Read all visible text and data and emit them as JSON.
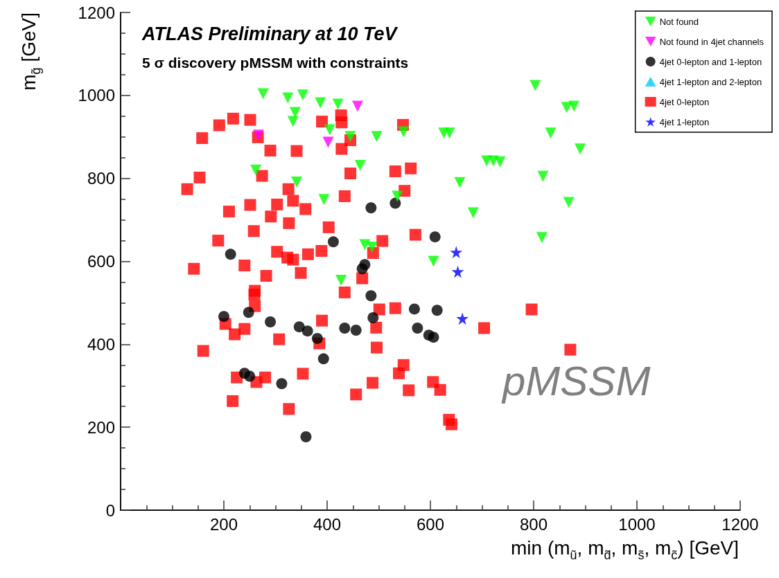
{
  "chart_data": {
    "type": "scatter",
    "title": "ATLAS Preliminary at 10 TeV",
    "subtitle": "5 σ discovery pMSSM with constraints",
    "xlabel": "min (m$_{ũ}$, m$_{d̃}$, m$_{s̃}$, m$_{c̃}$) [GeV]",
    "ylabel": "m$_{g̃}$ [GeV]",
    "annotations": [
      "pMSSM"
    ],
    "xlim": [
      0,
      1200
    ],
    "xticks": [
      200,
      400,
      600,
      800,
      1000,
      1200
    ],
    "ylim": [
      0,
      1200
    ],
    "yticks": [
      0,
      200,
      400,
      600,
      800,
      1000,
      1200
    ],
    "grid": false,
    "legend": "top right",
    "series": [
      {
        "name": "Not found",
        "color": "#00ff00",
        "marker": "triangle-down",
        "x": [
          276,
          324,
          353,
          387,
          421,
          338,
          334,
          405,
          445,
          496,
          548,
          626,
          637,
          464,
          341,
          394,
          536,
          606,
          657,
          683,
          473,
          487,
          427,
          262,
          803,
          864,
          878,
          833,
          890,
          709,
          722,
          735,
          818,
          868,
          816
        ],
        "values": [
          1004,
          994,
          1001,
          982,
          979,
          959,
          937,
          917,
          901,
          901,
          912,
          909,
          909,
          831,
          791,
          749,
          757,
          600,
          790,
          717,
          640,
          634,
          554,
          820,
          1024,
          971,
          974,
          909,
          871,
          842,
          842,
          840,
          805,
          742,
          657
        ]
      },
      {
        "name": "Not found in 4jet channels",
        "color": "#ff00ff",
        "marker": "triangle-down",
        "x": [
          267,
          459,
          402
        ],
        "values": [
          904,
          974,
          887
        ]
      },
      {
        "name": "4jet 0-lepton and 1-lepton",
        "color": "#000000",
        "marker": "circle",
        "x": [
          485,
          532,
          609,
          412,
          473,
          468,
          485,
          200,
          248,
          290,
          346,
          362,
          381,
          393,
          240,
          250,
          312,
          359,
          213,
          569,
          613,
          489,
          434,
          456,
          575,
          597,
          606
        ],
        "values": [
          729,
          740,
          659,
          647,
          592,
          582,
          517,
          467,
          477,
          454,
          442,
          432,
          414,
          365,
          330,
          323,
          305,
          177,
          617,
          485,
          482,
          464,
          439,
          434,
          439,
          422,
          417
        ]
      },
      {
        "name": "4jet 1-lepton and 2-lepton",
        "color": "#00ccff",
        "marker": "triangle"
      },
      {
        "name": "4jet 0-lepton",
        "color": "#ff0000",
        "marker": "square",
        "x": [
          218,
          251,
          191,
          158,
          266,
          290,
          341,
          390,
          153,
          129,
          274,
          325,
          334,
          358,
          251,
          210,
          303,
          291,
          326,
          258,
          189,
          303,
          323,
          334,
          363,
          389,
          142,
          240,
          282,
          349,
          259,
          403,
          260,
          260,
          203,
          221,
          240,
          307,
          160,
          225,
          263,
          280,
          353,
          217,
          326,
          390,
          385,
          427,
          428,
          547,
          445,
          428,
          445,
          532,
          562,
          550,
          434,
          571,
          507,
          489,
          468,
          434,
          501,
          532,
          495,
          496,
          548,
          539,
          488,
          456,
          558,
          605,
          619,
          636,
          641,
          704,
          796,
          871
        ],
        "values": [
          944,
          941,
          928,
          897,
          899,
          867,
          866,
          937,
          802,
          774,
          806,
          774,
          746,
          726,
          736,
          720,
          737,
          708,
          692,
          673,
          650,
          623,
          609,
          604,
          617,
          625,
          582,
          590,
          565,
          572,
          520,
          682,
          529,
          492,
          449,
          424,
          437,
          412,
          384,
          320,
          309,
          320,
          329,
          263,
          244,
          457,
          402,
          952,
          935,
          929,
          892,
          871,
          812,
          817,
          824,
          770,
          757,
          664,
          649,
          620,
          559,
          525,
          484,
          487,
          440,
          392,
          350,
          330,
          307,
          279,
          289,
          309,
          290,
          218,
          207,
          439,
          484,
          387
        ]
      },
      {
        "name": "4jet 1-lepton",
        "color": "#0000ff",
        "marker": "star",
        "x": [
          650,
          653,
          662
        ],
        "values": [
          622,
          575,
          462
        ]
      }
    ]
  }
}
